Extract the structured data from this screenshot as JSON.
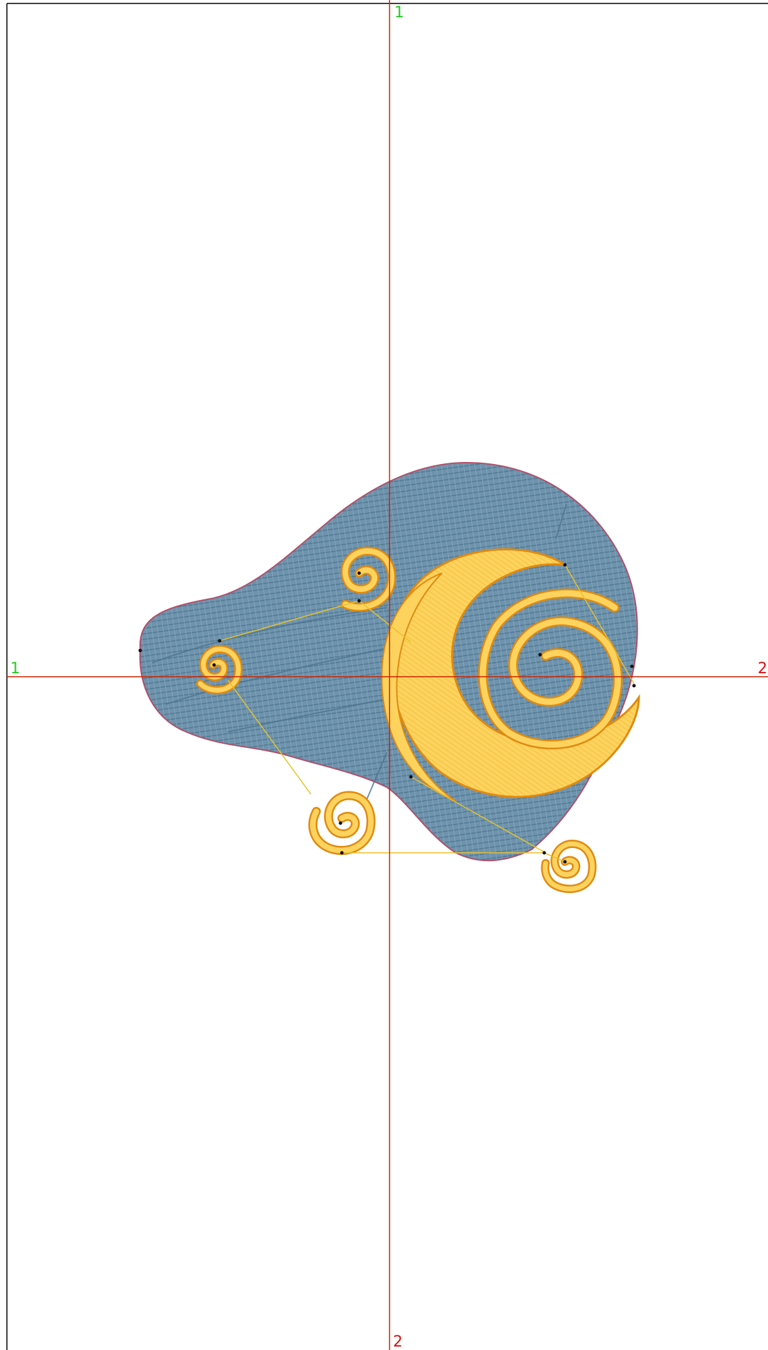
{
  "canvas": {
    "background": "#ffffff",
    "frame_color": "#000000"
  },
  "guides": {
    "color": "#cc2200",
    "vertical": {
      "top_label": "1",
      "bottom_label": "2"
    },
    "horizontal": {
      "left_label": "1",
      "right_label": "2"
    },
    "label_colors": {
      "one": "#22cc22",
      "two": "#dd1111"
    }
  },
  "design": {
    "colors": {
      "cloud_fill": "#6f93ad",
      "cloud_hatch": "#4d7590",
      "cloud_outline": "#b0506a",
      "gold_fill": "#fdd35e",
      "gold_outline": "#e08a10",
      "gold_stitch": "#c89a2a",
      "jump_line": "#e8c12a",
      "marker": "#111111"
    },
    "elements": [
      {
        "name": "cloud-shape"
      },
      {
        "name": "crescent-moon"
      },
      {
        "name": "spiral-center"
      },
      {
        "name": "spiral-top"
      },
      {
        "name": "spiral-left"
      },
      {
        "name": "spiral-bottom-left"
      },
      {
        "name": "spiral-bottom-right"
      }
    ]
  }
}
